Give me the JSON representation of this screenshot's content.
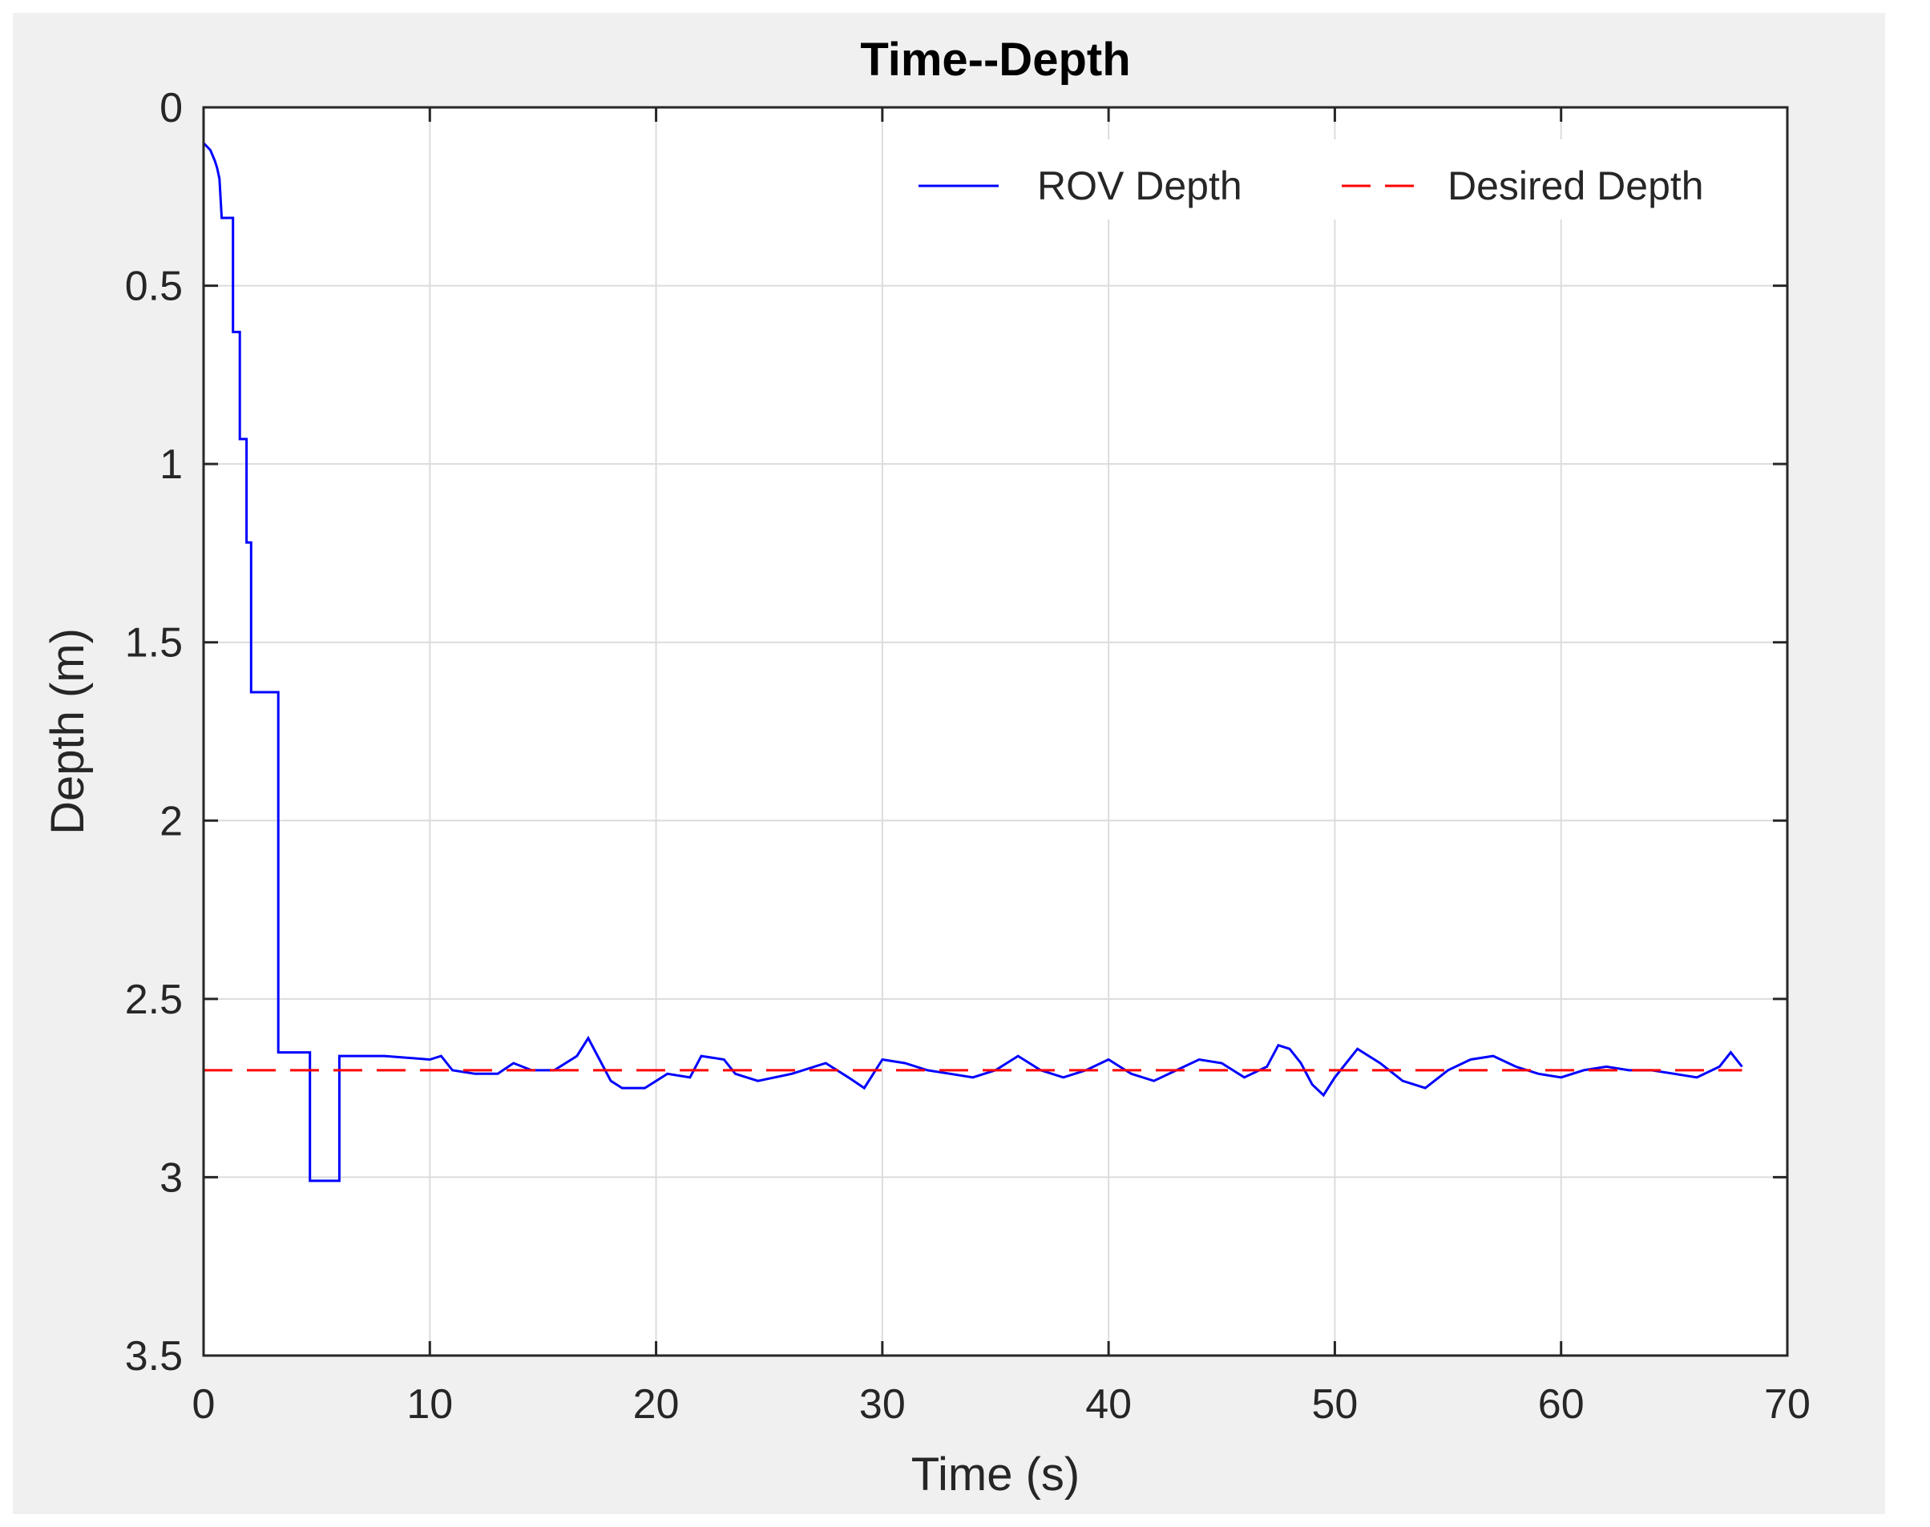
{
  "chart_data": {
    "type": "line",
    "title": "Time--Depth",
    "xlabel": "Time (s)",
    "ylabel": "Depth (m)",
    "xlim": [
      0,
      70
    ],
    "ylim": [
      0,
      3.5
    ],
    "y_reversed": true,
    "grid": true,
    "legend_position": "top-right",
    "x_ticks": [
      "0",
      "10",
      "20",
      "30",
      "40",
      "50",
      "60",
      "70"
    ],
    "y_ticks": [
      "0",
      "0.5",
      "1",
      "1.5",
      "2",
      "2.5",
      "3",
      "3.5"
    ],
    "series": [
      {
        "name": "ROV Depth",
        "color": "#0000ff",
        "style": "solid",
        "x": [
          0,
          0.3,
          0.5,
          0.6,
          0.7,
          0.8,
          0.9,
          1.1,
          1.3,
          1.3,
          1.6,
          1.6,
          1.9,
          1.9,
          2.1,
          2.1,
          2.6,
          3.2,
          3.2,
          3.3,
          3.3,
          4.6,
          4.6,
          4.7,
          4.7,
          5.9,
          5.9,
          6.0,
          6.0,
          8.0,
          10.0,
          10.5,
          11.0,
          12.0,
          13.0,
          13.7,
          14.5,
          15.5,
          16.5,
          17.0,
          17.5,
          18.0,
          18.5,
          19.5,
          20.5,
          21.5,
          22.0,
          23.0,
          23.5,
          24.5,
          26.0,
          27.5,
          28.5,
          29.2,
          30.0,
          31.0,
          32.0,
          33.0,
          34.0,
          35.0,
          36.0,
          37.0,
          38.0,
          39.0,
          40.0,
          41.0,
          42.0,
          43.0,
          44.0,
          45.0,
          46.0,
          47.0,
          47.5,
          48.0,
          48.5,
          49.0,
          49.5,
          50.0,
          51.0,
          52.0,
          53.0,
          54.0,
          55.0,
          56.0,
          57.0,
          58.0,
          59.0,
          60.0,
          61.0,
          62.0,
          63.0,
          64.0,
          65.0,
          66.0,
          67.0,
          67.5,
          68.0
        ],
        "y": [
          0.1,
          0.12,
          0.15,
          0.17,
          0.2,
          0.31,
          0.31,
          0.31,
          0.31,
          0.63,
          0.63,
          0.93,
          0.93,
          1.22,
          1.22,
          1.64,
          1.64,
          1.64,
          1.64,
          1.64,
          2.65,
          2.65,
          2.65,
          2.65,
          3.01,
          3.01,
          3.01,
          3.01,
          2.66,
          2.66,
          2.67,
          2.66,
          2.7,
          2.71,
          2.71,
          2.68,
          2.7,
          2.7,
          2.66,
          2.61,
          2.67,
          2.73,
          2.75,
          2.75,
          2.71,
          2.72,
          2.66,
          2.67,
          2.71,
          2.73,
          2.71,
          2.68,
          2.72,
          2.75,
          2.67,
          2.68,
          2.7,
          2.71,
          2.72,
          2.7,
          2.66,
          2.7,
          2.72,
          2.7,
          2.67,
          2.71,
          2.73,
          2.7,
          2.67,
          2.68,
          2.72,
          2.69,
          2.63,
          2.64,
          2.68,
          2.74,
          2.77,
          2.72,
          2.64,
          2.68,
          2.73,
          2.75,
          2.7,
          2.67,
          2.66,
          2.69,
          2.71,
          2.72,
          2.7,
          2.69,
          2.7,
          2.7,
          2.71,
          2.72,
          2.69,
          2.65,
          2.69
        ]
      },
      {
        "name": "Desired Depth",
        "color": "#ff0000",
        "style": "dashed",
        "x": [
          0,
          68
        ],
        "y": [
          2.7,
          2.7
        ]
      }
    ]
  }
}
